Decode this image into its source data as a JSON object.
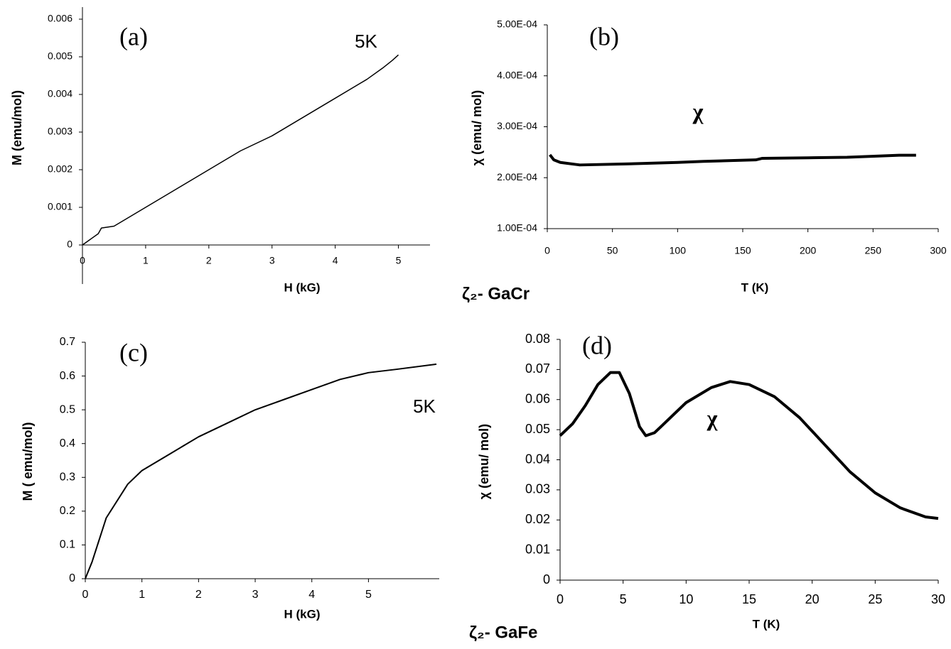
{
  "chart_data": [
    {
      "type": "line",
      "x_label": "H (kG)",
      "y_label": "M (emu/mol)",
      "annotations": [
        "(a)",
        "5K"
      ],
      "color": "#000000",
      "x": [
        0,
        0.25,
        0.3,
        0.5,
        1,
        1.5,
        2,
        2.5,
        3,
        3.5,
        4,
        4.5,
        4.75,
        4.9,
        5
      ],
      "values": [
        0,
        0.0003,
        0.00045,
        0.0005,
        0.001,
        0.0015,
        0.002,
        0.0025,
        0.0029,
        0.0034,
        0.0039,
        0.0044,
        0.0047,
        0.0049,
        0.00505
      ],
      "xlim": [
        0,
        5.5
      ],
      "xticks": [
        0,
        1,
        2,
        3,
        4,
        5
      ],
      "ylim": [
        0,
        0.006
      ],
      "yticks": [
        0,
        0.001,
        0.002,
        0.003,
        0.004,
        0.005,
        0.006
      ]
    },
    {
      "type": "line",
      "x_label": "T (K)",
      "y_label": "χ (emu/ mol)",
      "annotations": [
        "(b)",
        "χ"
      ],
      "color": "#000000",
      "x": [
        2,
        5,
        10,
        25,
        60,
        100,
        120,
        160,
        165,
        200,
        230,
        270,
        283
      ],
      "values": [
        0.000245,
        0.000235,
        0.00023,
        0.000225,
        0.000227,
        0.00023,
        0.000232,
        0.000235,
        0.000238,
        0.000239,
        0.00024,
        0.000244,
        0.000244
      ],
      "xlim": [
        0,
        300
      ],
      "xticks": [
        0,
        50,
        100,
        150,
        200,
        250,
        300
      ],
      "ylim": [
        0.0001,
        0.0005
      ],
      "yticks": [
        {
          "value": 0.0001,
          "label": "1.00E-04"
        },
        {
          "value": 0.0002,
          "label": "2.00E-04"
        },
        {
          "value": 0.0003,
          "label": "3.00E-04"
        },
        {
          "value": 0.0004,
          "label": "4.00E-04"
        },
        {
          "value": 0.0005,
          "label": "5.00E-04"
        }
      ]
    },
    {
      "type": "line",
      "x_label": "H (kG)",
      "y_label": "M ( emu/mol)",
      "annotations": [
        "(c)",
        "5K"
      ],
      "color": "#000000",
      "x": [
        0,
        0.12,
        0.37,
        0.75,
        1,
        1.5,
        2,
        2.5,
        3,
        3.5,
        4,
        4.5,
        5,
        5.5,
        6.2
      ],
      "values": [
        0,
        0.05,
        0.18,
        0.28,
        0.32,
        0.37,
        0.42,
        0.46,
        0.5,
        0.53,
        0.56,
        0.59,
        0.61,
        0.62,
        0.635
      ],
      "xlim": [
        0,
        6.25
      ],
      "xticks": [
        0,
        1,
        2,
        3,
        4,
        5
      ],
      "ylim": [
        0,
        0.7
      ],
      "yticks": [
        0,
        0.1,
        0.2,
        0.3,
        0.4,
        0.5,
        0.6,
        0.7
      ]
    },
    {
      "type": "line",
      "x_label": "T (K)",
      "y_label": "χ (emu/ mol)",
      "annotations": [
        "(d)",
        "χ"
      ],
      "color": "#000000",
      "x": [
        0,
        1,
        2,
        3,
        4,
        4.7,
        5.5,
        6.3,
        6.8,
        7.5,
        8,
        10,
        12,
        13.5,
        15,
        17,
        19,
        21,
        23,
        25,
        27,
        29,
        30
      ],
      "values": [
        0.048,
        0.052,
        0.058,
        0.065,
        0.069,
        0.069,
        0.062,
        0.051,
        0.048,
        0.049,
        0.051,
        0.059,
        0.064,
        0.066,
        0.065,
        0.061,
        0.054,
        0.045,
        0.036,
        0.029,
        0.024,
        0.021,
        0.0205
      ],
      "xlim": [
        0,
        30
      ],
      "xticks": [
        0,
        5,
        10,
        15,
        20,
        25,
        30
      ],
      "ylim": [
        0,
        0.08
      ],
      "yticks": [
        0,
        0.01,
        0.02,
        0.03,
        0.04,
        0.05,
        0.06,
        0.07,
        0.08
      ]
    }
  ],
  "captions": [
    "ζ₂-  GaCr",
    "ζ₂-  GaFe"
  ]
}
